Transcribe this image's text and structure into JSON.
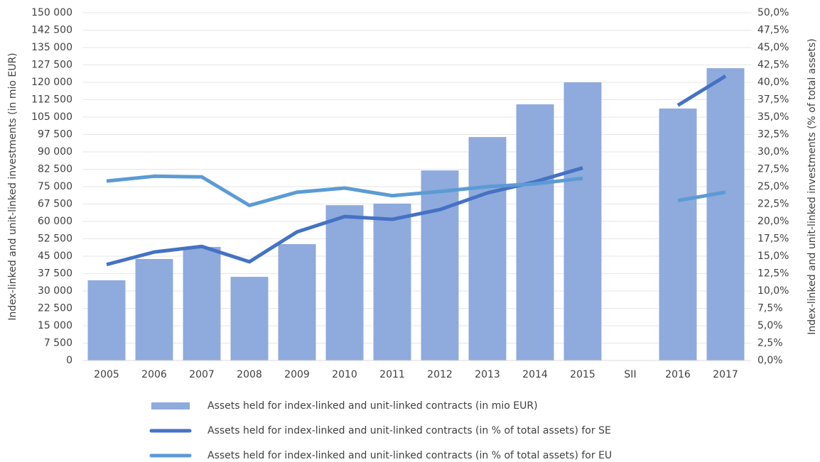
{
  "chart_data": {
    "type": "bar",
    "categories": [
      "2005",
      "2006",
      "2007",
      "2008",
      "2009",
      "2010",
      "2011",
      "2012",
      "2013",
      "2014",
      "2015",
      "SII",
      "2016",
      "2017"
    ],
    "ylabel": "Index-linked and unit-linked investments (in mio EUR)",
    "y2label": "Index-linked and unit-linked investments (% of total assets)",
    "ylim": [
      0,
      150000
    ],
    "yticks": [
      0,
      {
        "value": 7500,
        "label": "7 500"
      },
      {
        "value": 15000,
        "label": "15 000"
      },
      {
        "value": 22500,
        "label": "22 500"
      },
      {
        "value": 30000,
        "label": "30 000"
      },
      {
        "value": 37500,
        "label": "37 500"
      },
      {
        "value": 45000,
        "label": "45 000"
      },
      {
        "value": 52500,
        "label": "52 500"
      },
      {
        "value": 60000,
        "label": "60 000"
      },
      {
        "value": 67500,
        "label": "67 500"
      },
      {
        "value": 75000,
        "label": "75 000"
      },
      {
        "value": 82500,
        "label": "82 500"
      },
      {
        "value": 90000,
        "label": "90 000"
      },
      {
        "value": 97500,
        "label": "97 500"
      },
      {
        "value": 105000,
        "label": "105 000"
      },
      {
        "value": 112500,
        "label": "112 500"
      },
      {
        "value": 120000,
        "label": "120 000"
      },
      {
        "value": 127500,
        "label": "127 500"
      },
      {
        "value": 135000,
        "label": "135 000"
      },
      {
        "value": 142500,
        "label": "142 500"
      },
      {
        "value": 150000,
        "label": "150 000"
      }
    ],
    "y2lim": [
      0,
      50
    ],
    "y2ticks": [
      {
        "value": 0,
        "label": "0,0%"
      },
      {
        "value": 2.5,
        "label": "2,5%"
      },
      {
        "value": 5,
        "label": "5,0%"
      },
      {
        "value": 7.5,
        "label": "7,5%"
      },
      {
        "value": 10,
        "label": "10,0%"
      },
      {
        "value": 12.5,
        "label": "12,5%"
      },
      {
        "value": 15,
        "label": "15,0%"
      },
      {
        "value": 17.5,
        "label": "17,5%"
      },
      {
        "value": 20,
        "label": "20,0%"
      },
      {
        "value": 22.5,
        "label": "22,5%"
      },
      {
        "value": 25,
        "label": "25,0%"
      },
      {
        "value": 27.5,
        "label": "27,5%"
      },
      {
        "value": 30,
        "label": "30,0%"
      },
      {
        "value": 32.5,
        "label": "32,5%"
      },
      {
        "value": 35,
        "label": "35,0%"
      },
      {
        "value": 37.5,
        "label": "37,5%"
      },
      {
        "value": 40,
        "label": "40,0%"
      },
      {
        "value": 42.5,
        "label": "42,5%"
      },
      {
        "value": 45,
        "label": "45,0%"
      },
      {
        "value": 47.5,
        "label": "47,5%"
      },
      {
        "value": 50,
        "label": "50,0%"
      }
    ],
    "grid": true,
    "series": [
      {
        "name": "Assets held for index-linked and unit-linked contracts (in mio EUR)",
        "type": "bar",
        "color": "#8faadc",
        "values": [
          34600,
          43800,
          49000,
          36100,
          50200,
          67000,
          67700,
          82000,
          96400,
          110500,
          120000,
          null,
          108700,
          126100
        ]
      },
      {
        "name": "Assets held for index-linked and unit-linked contracts (in % of total assets) for SE",
        "type": "line",
        "axis": "y2",
        "color": "#4472c4",
        "values": [
          13.8,
          15.6,
          16.4,
          14.2,
          18.5,
          20.7,
          20.3,
          21.7,
          24.1,
          25.7,
          27.7,
          null,
          36.7,
          40.9
        ]
      },
      {
        "name": "Assets held for index-linked and unit-linked contracts (in % of total assets) for EU",
        "type": "line",
        "axis": "y2",
        "color": "#5b9bd5",
        "values": [
          25.8,
          26.5,
          26.4,
          22.3,
          24.2,
          24.8,
          23.7,
          24.3,
          25.0,
          25.4,
          26.2,
          null,
          23.0,
          24.2
        ]
      }
    ]
  }
}
